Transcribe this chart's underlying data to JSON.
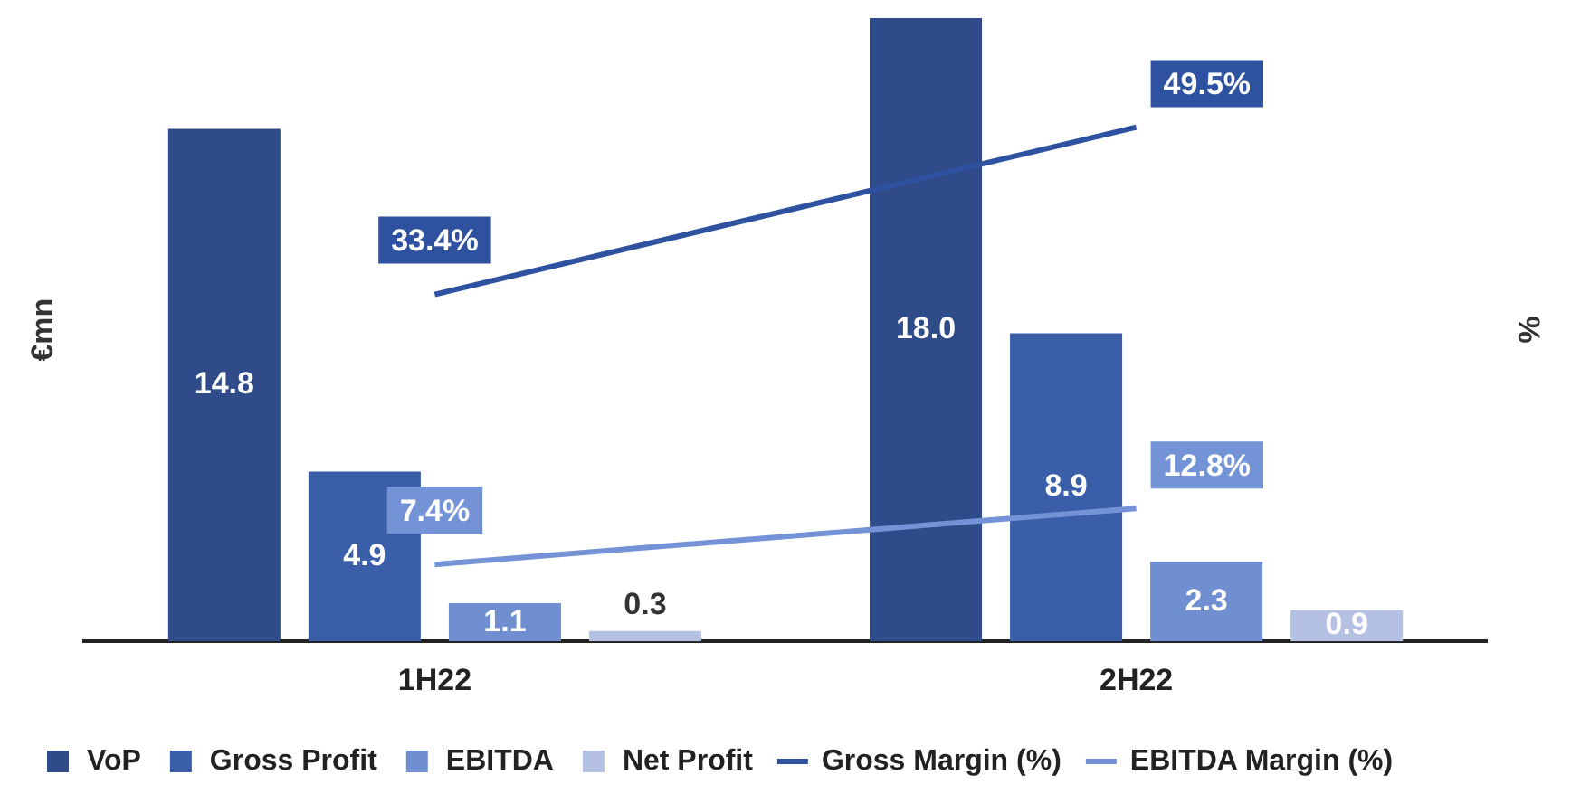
{
  "chart_data": {
    "type": "bar",
    "ylabel": "€mn",
    "y2label": "%",
    "categories": [
      "1H22",
      "2H22"
    ],
    "series": [
      {
        "name": "VoP",
        "color": "#2f4b8a",
        "values": [
          14.8,
          18.0
        ],
        "value_labels": [
          "14.8",
          "18.0"
        ]
      },
      {
        "name": "Gross Profit",
        "color": "#3a5ea8",
        "values": [
          4.9,
          8.9
        ],
        "value_labels": [
          "4.9",
          "8.9"
        ]
      },
      {
        "name": "EBITDA",
        "color": "#6f8fd0",
        "values": [
          1.1,
          2.3
        ],
        "value_labels": [
          "1.1",
          "2.3"
        ]
      },
      {
        "name": "Net Profit",
        "color": "#b4c1e2",
        "values": [
          0.3,
          0.9
        ],
        "value_labels": [
          "0.3",
          "0.9"
        ]
      },
      {
        "name": "Gross Margin (%)",
        "type": "line",
        "axis": "y2",
        "color": "#2e52a0",
        "values": [
          33.4,
          49.5
        ],
        "value_labels": [
          "33.4%",
          "49.5%"
        ]
      },
      {
        "name": "EBITDA Margin (%)",
        "type": "line",
        "axis": "y2",
        "color": "#7493d6",
        "values": [
          7.4,
          12.8
        ],
        "value_labels": [
          "7.4%",
          "12.8%"
        ]
      }
    ],
    "legend": "bottom",
    "grid": false,
    "tick_labels": "x",
    "marker": "none",
    "line_style": "solid"
  }
}
